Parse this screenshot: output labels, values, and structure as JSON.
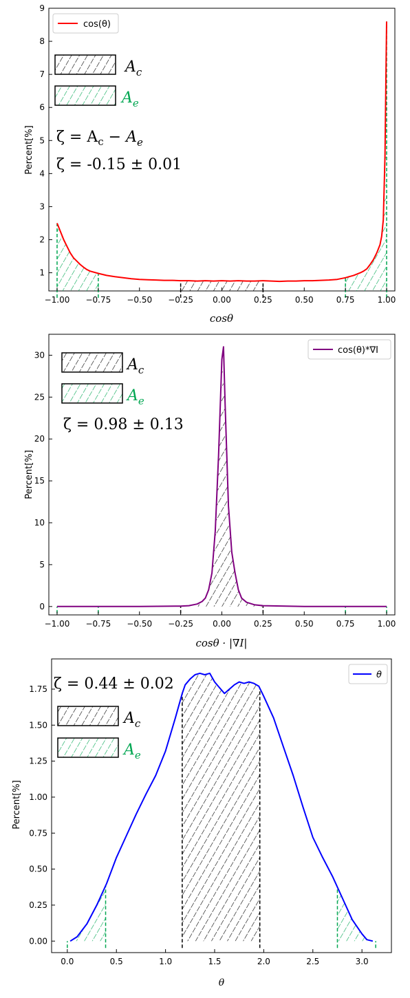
{
  "chart_data": [
    {
      "type": "line",
      "xlabel": "cosθ",
      "ylabel": "Percent[%]",
      "xlim": [
        -1.05,
        1.05
      ],
      "ylim": [
        0.45,
        9.0
      ],
      "x_ticks": [
        -1.0,
        -0.75,
        -0.5,
        -0.25,
        0.0,
        0.25,
        0.5,
        0.75,
        1.0
      ],
      "x_tick_labels": [
        "−1.00",
        "−0.75",
        "−0.50",
        "−0.25",
        "0.00",
        "0.25",
        "0.50",
        "0.75",
        "1.00"
      ],
      "y_ticks": [
        1,
        2,
        3,
        4,
        5,
        6,
        7,
        8,
        9
      ],
      "y_tick_labels": [
        "1",
        "2",
        "3",
        "4",
        "5",
        "6",
        "7",
        "8",
        "9"
      ],
      "legend": {
        "position": "top-left",
        "label": "cos(θ)"
      },
      "series": [
        {
          "name": "cos(θ)",
          "color": "#ff0000",
          "x": [
            -1.0,
            -0.98,
            -0.96,
            -0.94,
            -0.92,
            -0.9,
            -0.88,
            -0.86,
            -0.84,
            -0.82,
            -0.8,
            -0.75,
            -0.7,
            -0.65,
            -0.6,
            -0.55,
            -0.5,
            -0.45,
            -0.4,
            -0.35,
            -0.3,
            -0.25,
            -0.2,
            -0.15,
            -0.1,
            -0.05,
            0.0,
            0.05,
            0.1,
            0.15,
            0.2,
            0.25,
            0.3,
            0.35,
            0.4,
            0.45,
            0.5,
            0.55,
            0.6,
            0.65,
            0.7,
            0.75,
            0.8,
            0.84,
            0.86,
            0.88,
            0.9,
            0.92,
            0.94,
            0.96,
            0.97,
            0.98,
            0.99,
            1.0
          ],
          "y": [
            2.5,
            2.25,
            2.0,
            1.8,
            1.6,
            1.45,
            1.35,
            1.25,
            1.17,
            1.1,
            1.05,
            0.98,
            0.92,
            0.88,
            0.85,
            0.82,
            0.8,
            0.79,
            0.78,
            0.77,
            0.77,
            0.76,
            0.76,
            0.75,
            0.76,
            0.75,
            0.76,
            0.75,
            0.76,
            0.75,
            0.75,
            0.76,
            0.75,
            0.74,
            0.75,
            0.75,
            0.76,
            0.76,
            0.77,
            0.78,
            0.8,
            0.85,
            0.92,
            1.0,
            1.05,
            1.12,
            1.25,
            1.4,
            1.6,
            1.85,
            2.1,
            2.6,
            4.5,
            8.6
          ]
        }
      ],
      "regions": [
        {
          "type": "A_e",
          "from": -1.0,
          "to": -0.75
        },
        {
          "type": "A_c",
          "from": -0.25,
          "to": 0.25
        },
        {
          "type": "A_e",
          "from": 0.75,
          "to": 1.0
        }
      ],
      "annotations": {
        "ac_label": "A",
        "ac_sub": "c",
        "ae_label": "A",
        "ae_sub": "e",
        "eq1_lhs": "ζ = A",
        "eq1_c": "c",
        "eq1_minus": " − ",
        "eq1_a": "A",
        "eq1_e": "e",
        "eq2": "ζ = -0.15 ± 0.01"
      }
    },
    {
      "type": "line",
      "xlabel": "cosθ · |∇I|",
      "ylabel": "Percent[%]",
      "xlim": [
        -1.05,
        1.05
      ],
      "ylim": [
        -1.0,
        32.5
      ],
      "x_ticks": [
        -1.0,
        -0.75,
        -0.5,
        -0.25,
        0.0,
        0.25,
        0.5,
        0.75,
        1.0
      ],
      "x_tick_labels": [
        "−1.00",
        "−0.75",
        "−0.50",
        "−0.25",
        "0.00",
        "0.25",
        "0.50",
        "0.75",
        "1.00"
      ],
      "y_ticks": [
        0,
        5,
        10,
        15,
        20,
        25,
        30
      ],
      "y_tick_labels": [
        "0",
        "5",
        "10",
        "15",
        "20",
        "25",
        "30"
      ],
      "legend": {
        "position": "top-right",
        "label": "cos(θ)*∇I"
      },
      "series": [
        {
          "name": "cos(θ)*∇I",
          "color": "#800080",
          "x": [
            -1.0,
            -0.5,
            -0.25,
            -0.2,
            -0.15,
            -0.12,
            -0.1,
            -0.08,
            -0.06,
            -0.04,
            -0.02,
            0.0,
            0.01,
            0.02,
            0.04,
            0.06,
            0.08,
            0.1,
            0.12,
            0.15,
            0.2,
            0.25,
            0.5,
            1.0
          ],
          "y": [
            0.0,
            0.0,
            0.05,
            0.1,
            0.3,
            0.6,
            1.0,
            2.0,
            4.0,
            9.0,
            18.0,
            29.5,
            31.0,
            24.0,
            12.0,
            6.5,
            4.0,
            2.0,
            1.0,
            0.5,
            0.2,
            0.1,
            0.0,
            0.0
          ]
        }
      ],
      "regions": [
        {
          "type": "A_e",
          "from": -1.0,
          "to": -0.75
        },
        {
          "type": "A_c",
          "from": -0.25,
          "to": 0.25
        },
        {
          "type": "A_e",
          "from": 0.75,
          "to": 1.0
        }
      ],
      "annotations": {
        "ac_label": "A",
        "ac_sub": "c",
        "ae_label": "A",
        "ae_sub": "e",
        "eq": "ζ = 0.98 ± 0.13"
      }
    },
    {
      "type": "line",
      "xlabel": "θ",
      "ylabel": "Percent[%]",
      "xlim": [
        -0.16,
        3.3
      ],
      "ylim": [
        -0.08,
        1.96
      ],
      "x_ticks": [
        0.0,
        0.5,
        1.0,
        1.5,
        2.0,
        2.5,
        3.0
      ],
      "x_tick_labels": [
        "0.0",
        "0.5",
        "1.0",
        "1.5",
        "2.0",
        "2.5",
        "3.0"
      ],
      "y_ticks": [
        0.0,
        0.25,
        0.5,
        0.75,
        1.0,
        1.25,
        1.5,
        1.75
      ],
      "y_tick_labels": [
        "0.00",
        "0.25",
        "0.50",
        "0.75",
        "1.00",
        "1.25",
        "1.50",
        "1.75"
      ],
      "legend": {
        "position": "top-right",
        "label": "θ"
      },
      "series": [
        {
          "name": "θ",
          "color": "#0000ff",
          "x": [
            0.03,
            0.1,
            0.2,
            0.3,
            0.4,
            0.5,
            0.6,
            0.7,
            0.8,
            0.9,
            1.0,
            1.1,
            1.17,
            1.2,
            1.25,
            1.3,
            1.35,
            1.4,
            1.45,
            1.5,
            1.55,
            1.6,
            1.65,
            1.7,
            1.75,
            1.8,
            1.85,
            1.9,
            1.95,
            2.0,
            2.1,
            2.2,
            2.3,
            2.4,
            2.5,
            2.6,
            2.7,
            2.8,
            2.9,
            3.0,
            3.05,
            3.11
          ],
          "y": [
            0.0,
            0.03,
            0.12,
            0.25,
            0.4,
            0.58,
            0.73,
            0.88,
            1.02,
            1.15,
            1.32,
            1.55,
            1.72,
            1.78,
            1.82,
            1.85,
            1.86,
            1.85,
            1.86,
            1.8,
            1.76,
            1.72,
            1.75,
            1.78,
            1.8,
            1.79,
            1.8,
            1.79,
            1.77,
            1.7,
            1.55,
            1.35,
            1.15,
            0.93,
            0.72,
            0.58,
            0.45,
            0.3,
            0.15,
            0.05,
            0.01,
            0.0
          ]
        }
      ],
      "regions": [
        {
          "type": "A_e",
          "from": 0.0,
          "to": 0.39
        },
        {
          "type": "A_c",
          "from": 1.17,
          "to": 1.96
        },
        {
          "type": "A_e",
          "from": 2.75,
          "to": 3.14
        }
      ],
      "annotations": {
        "ac_label": "A",
        "ac_sub": "c",
        "ae_label": "A",
        "ae_sub": "e",
        "eq": "ζ = 0.44 ± 0.02"
      }
    }
  ],
  "colors": {
    "ae_green": "#00a651",
    "ac_black": "#000000"
  }
}
